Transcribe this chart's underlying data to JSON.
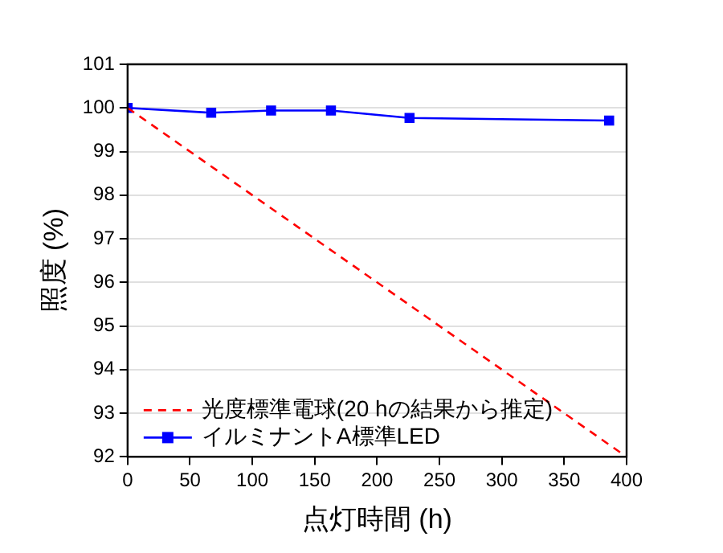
{
  "chart_data": {
    "type": "line",
    "xlabel": "点灯時間 (h)",
    "ylabel": "照度 (%)",
    "xlim": [
      0,
      400
    ],
    "xticks": [
      0,
      50,
      100,
      150,
      200,
      250,
      300,
      350,
      400
    ],
    "ylim": [
      92,
      101
    ],
    "yticks": [
      92,
      93,
      94,
      95,
      96,
      97,
      98,
      99,
      100,
      101
    ],
    "grid": "y",
    "legend": "bottom left",
    "series": [
      {
        "name": "光度標準電球(20 hの結果から推定)",
        "color": "#ff0000",
        "x": [
          0,
          400
        ],
        "values": [
          100,
          92
        ],
        "line_style": "dashed",
        "marker": "none"
      },
      {
        "name": "イルミナントA標準LED",
        "color": "#0000ff",
        "x": [
          0,
          67,
          115,
          163,
          226,
          386
        ],
        "values": [
          100,
          99.89,
          99.94,
          99.94,
          99.77,
          99.71
        ],
        "line_style": "solid",
        "marker": "square"
      }
    ]
  }
}
